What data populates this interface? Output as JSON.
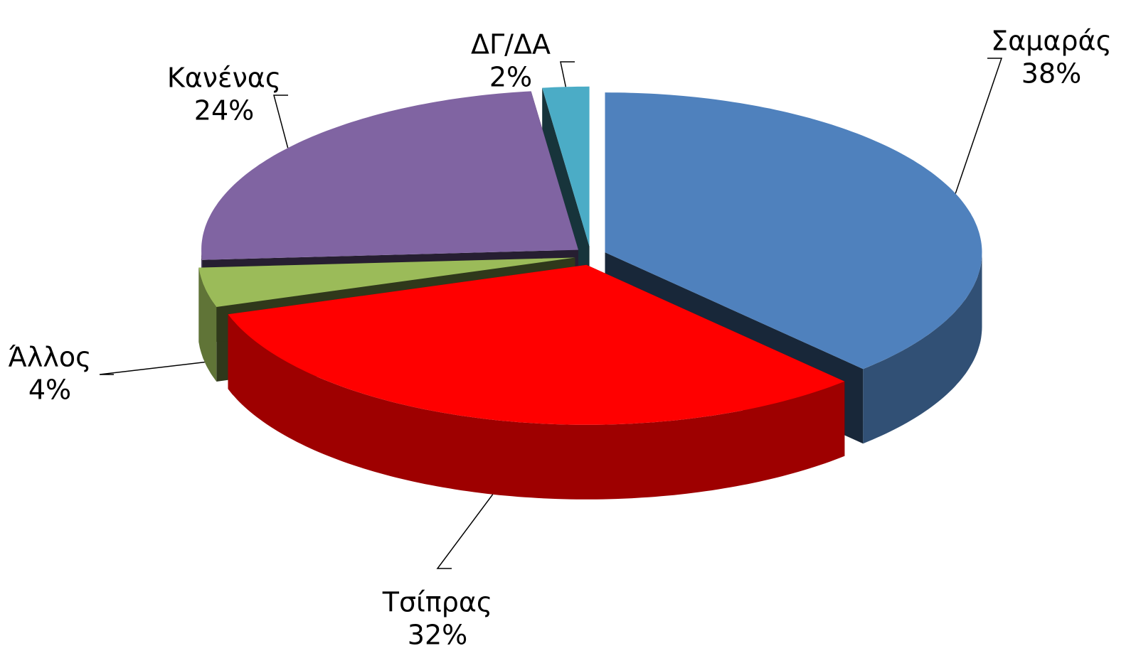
{
  "chart_data": {
    "type": "pie",
    "categories": [
      "Σαμαράς",
      "Τσίπρας",
      "Άλλος",
      "Κανένας",
      "ΔΓ/ΔΑ"
    ],
    "values": [
      38,
      32,
      4,
      24,
      2
    ],
    "value_labels": [
      "38%",
      "32%",
      "4%",
      "24%",
      "2%"
    ],
    "colors": [
      "#4f81bd",
      "#ff0000",
      "#9bbb59",
      "#8064a2",
      "#4bacc6"
    ]
  }
}
